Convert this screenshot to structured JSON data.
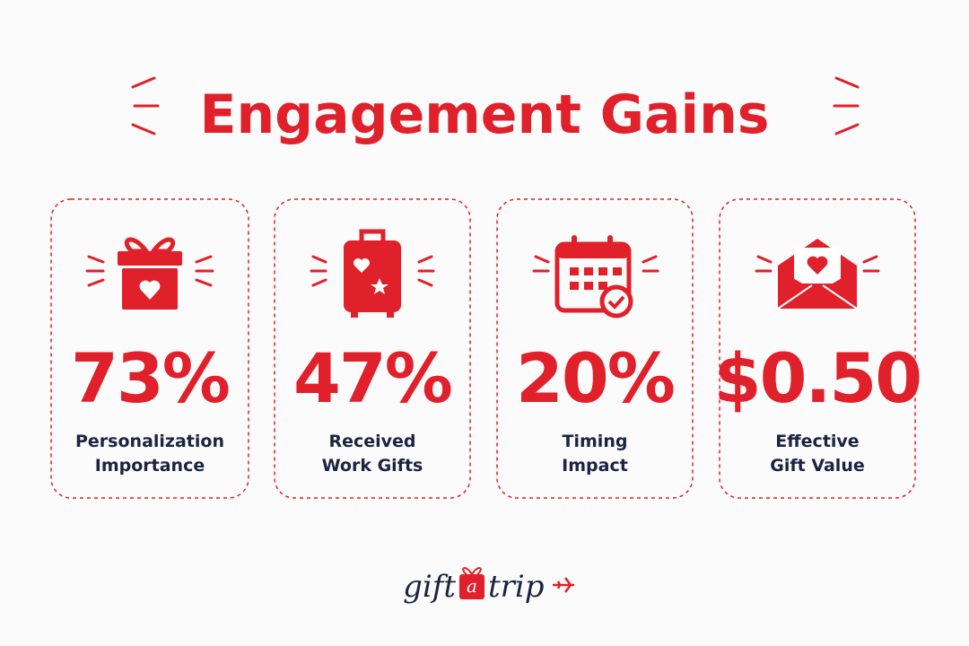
{
  "title": "Engagement Gains",
  "cards": [
    {
      "value": "73%",
      "label": [
        "Personalization",
        "Importance"
      ]
    },
    {
      "value": "47%",
      "label": [
        "Received",
        "Work Gifts"
      ]
    },
    {
      "value": "20%",
      "label": [
        "Timing",
        "Impact"
      ]
    },
    {
      "value": "$0.50",
      "label": [
        "Effective",
        "Gift Value"
      ]
    }
  ],
  "logo": {
    "left": "gift",
    "middle": "a",
    "right": "trip"
  }
}
